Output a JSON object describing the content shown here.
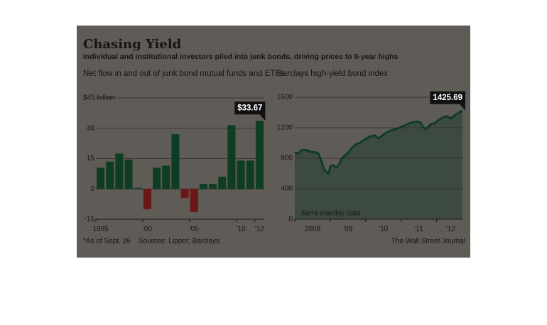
{
  "header": {
    "title": "Chasing Yield",
    "subtitle": "Individual and institutional investors piled into junk bonds, driving prices to 5-year highs"
  },
  "footer": {
    "note": "*As of Sept. 26",
    "source": "Sources: Lipper; Barclays",
    "credit": "The Wall Street Journal"
  },
  "chart_data": [
    {
      "type": "bar",
      "title": "Net flow in and out of junk bond mutual funds and ETFs",
      "categories": [
        "1995",
        null,
        null,
        null,
        null,
        "'00",
        null,
        null,
        null,
        null,
        "'05",
        null,
        null,
        null,
        null,
        "'10",
        null,
        "'12"
      ],
      "values": [
        10.5,
        13.5,
        17.5,
        14.5,
        0.5,
        -10,
        10.5,
        11.5,
        27,
        -4.5,
        -11.5,
        2.5,
        2.5,
        6,
        31.5,
        14,
        14,
        33.67
      ],
      "value_labels": [
        null,
        null,
        null,
        null,
        null,
        null,
        null,
        null,
        null,
        null,
        null,
        null,
        null,
        null,
        null,
        null,
        null,
        "$33.67"
      ],
      "color": "#0f3d24",
      "negative_color": "#6b1717",
      "ylim": [
        -15,
        45
      ],
      "yticks": [
        -15,
        0,
        15,
        30,
        {
          "value": 45,
          "label": "$45 billion"
        }
      ],
      "grid": true
    },
    {
      "type": "area",
      "title": "Barclays high-yield bond index",
      "annotation": "Semi-monthly data",
      "x": [
        2008.0,
        2008.04,
        2008.1,
        2008.17,
        2008.25,
        2008.33,
        2008.42,
        2008.5,
        2008.58,
        2008.67,
        2008.75,
        2008.83,
        2008.9,
        2008.96,
        2009.0,
        2009.08,
        2009.17,
        2009.25,
        2009.33,
        2009.42,
        2009.5,
        2009.58,
        2009.67,
        2009.75,
        2009.83,
        2009.92,
        2010.0,
        2010.1,
        2010.25,
        2010.35,
        2010.42,
        2010.5,
        2010.6,
        2010.75,
        2010.9,
        2011.0,
        2011.15,
        2011.3,
        2011.45,
        2011.55,
        2011.62,
        2011.7,
        2011.78,
        2011.85,
        2011.95,
        2012.05,
        2012.2,
        2012.3,
        2012.4,
        2012.5,
        2012.6,
        2012.73
      ],
      "values": [
        880,
        870,
        860,
        900,
        910,
        905,
        890,
        880,
        880,
        860,
        760,
        650,
        620,
        600,
        690,
        710,
        680,
        720,
        800,
        840,
        870,
        920,
        960,
        990,
        1000,
        1030,
        1050,
        1080,
        1100,
        1060,
        1080,
        1110,
        1140,
        1170,
        1190,
        1210,
        1240,
        1270,
        1280,
        1270,
        1210,
        1180,
        1220,
        1250,
        1260,
        1300,
        1340,
        1350,
        1320,
        1360,
        1390,
        1425.69
      ],
      "color": "#0f3d24",
      "fill": "#3d4a40",
      "xlim": [
        2008,
        2012.75
      ],
      "xticks": [
        {
          "value": 2008.5,
          "label": "2008"
        },
        {
          "value": 2009.5,
          "label": "'09"
        },
        {
          "value": 2010.5,
          "label": "'10"
        },
        {
          "value": 2011.5,
          "label": "'11"
        },
        {
          "value": 2012.4,
          "label": "'12"
        }
      ],
      "ylim": [
        0,
        1600
      ],
      "yticks": [
        0,
        400,
        800,
        1200,
        1600
      ],
      "grid": true
    }
  ]
}
